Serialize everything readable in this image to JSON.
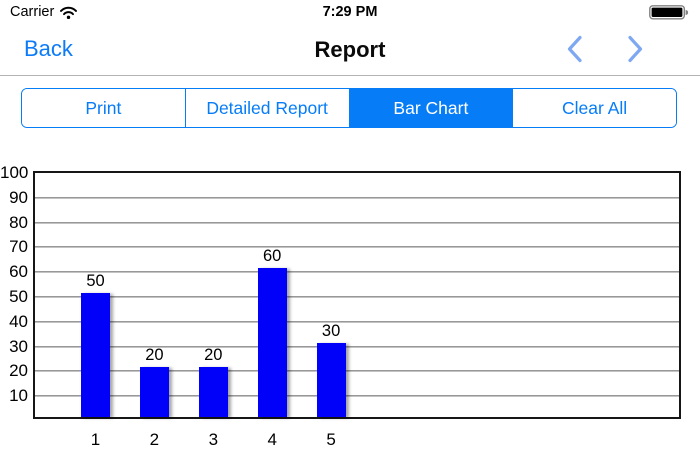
{
  "status_bar": {
    "carrier": "Carrier",
    "time": "7:29 PM",
    "wifi_icon": "wifi-icon",
    "battery_icon": "battery-full-icon"
  },
  "nav_bar": {
    "back_label": "Back",
    "title": "Report",
    "chevron_color": "#7ea8f2",
    "prev_icon": "chevron-left-icon",
    "next_icon": "chevron-right-icon"
  },
  "segmented_control": {
    "accent_color": "#067cf7",
    "items": [
      {
        "label": "Print",
        "selected": false
      },
      {
        "label": "Detailed Report",
        "selected": false
      },
      {
        "label": "Bar Chart",
        "selected": true
      },
      {
        "label": "Clear All",
        "selected": false
      }
    ]
  },
  "chart_data": {
    "type": "bar",
    "title": "",
    "xlabel": "",
    "ylabel": "",
    "categories": [
      "1",
      "2",
      "3",
      "4",
      "5"
    ],
    "values": [
      50,
      20,
      20,
      60,
      30
    ],
    "bar_value_labels": [
      "50",
      "20",
      "20",
      "60",
      "30"
    ],
    "ylim": [
      0,
      100
    ],
    "yticks": [
      100,
      90,
      80,
      70,
      60,
      50,
      40,
      30,
      20,
      10
    ],
    "grid": true,
    "legend_position": "none",
    "bar_color": "#0101fa"
  }
}
